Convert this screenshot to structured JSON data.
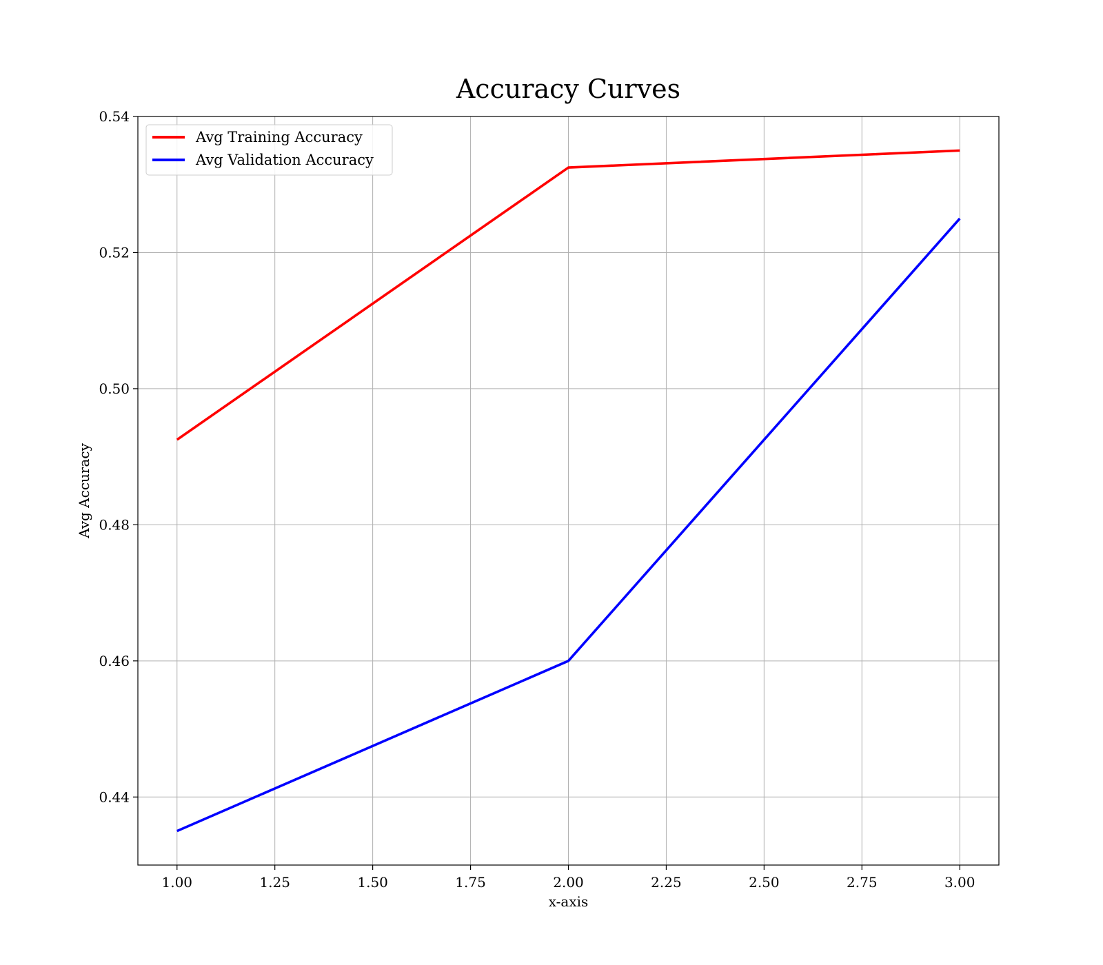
{
  "chart_data": {
    "type": "line",
    "title": "Accuracy Curves",
    "xlabel": "x-axis",
    "ylabel": "Avg Accuracy",
    "xlim": [
      0.9,
      3.1
    ],
    "ylim": [
      0.43,
      0.54
    ],
    "x_ticks": [
      1.0,
      1.25,
      1.5,
      1.75,
      2.0,
      2.25,
      2.5,
      2.75,
      3.0
    ],
    "x_tick_labels": [
      "1.00",
      "1.25",
      "1.50",
      "1.75",
      "2.00",
      "2.25",
      "2.50",
      "2.75",
      "3.00"
    ],
    "y_ticks": [
      0.44,
      0.46,
      0.48,
      0.5,
      0.52,
      0.54
    ],
    "y_tick_labels": [
      "0.44",
      "0.46",
      "0.48",
      "0.50",
      "0.52",
      "0.54"
    ],
    "grid": true,
    "legend_position": "top-left",
    "x": [
      1,
      2,
      3
    ],
    "series": [
      {
        "name": "Avg Training Accuracy",
        "color": "#ff0000",
        "values": [
          0.4925,
          0.5325,
          0.535
        ]
      },
      {
        "name": "Avg Validation Accuracy",
        "color": "#0000ff",
        "values": [
          0.435,
          0.46,
          0.525
        ]
      }
    ]
  }
}
